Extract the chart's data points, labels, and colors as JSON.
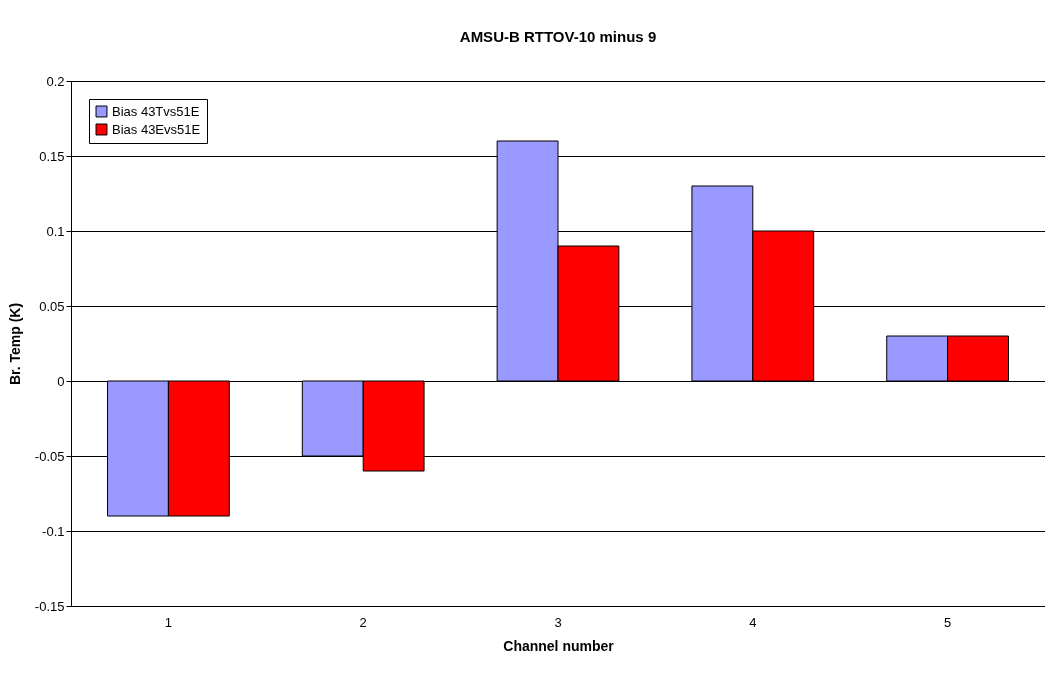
{
  "chart_data": {
    "type": "bar",
    "title": "AMSU-B RTTOV-10 minus 9",
    "xlabel": "Channel number",
    "ylabel": "Br. Temp (K)",
    "categories": [
      "1",
      "2",
      "3",
      "4",
      "5"
    ],
    "series": [
      {
        "name": "Bias 43Tvs51E",
        "color": "#9999ff",
        "values": [
          -0.09,
          -0.05,
          0.16,
          0.13,
          0.03
        ]
      },
      {
        "name": "Bias 43Evs51E",
        "color": "#ff0000",
        "values": [
          -0.09,
          -0.06,
          0.09,
          0.1,
          0.03
        ]
      }
    ],
    "ylim": [
      -0.15,
      0.2
    ],
    "yticks": [
      -0.15,
      -0.1,
      -0.05,
      0,
      0.05,
      0.1,
      0.15,
      0.2
    ],
    "grid": "y",
    "legend": "top left"
  }
}
